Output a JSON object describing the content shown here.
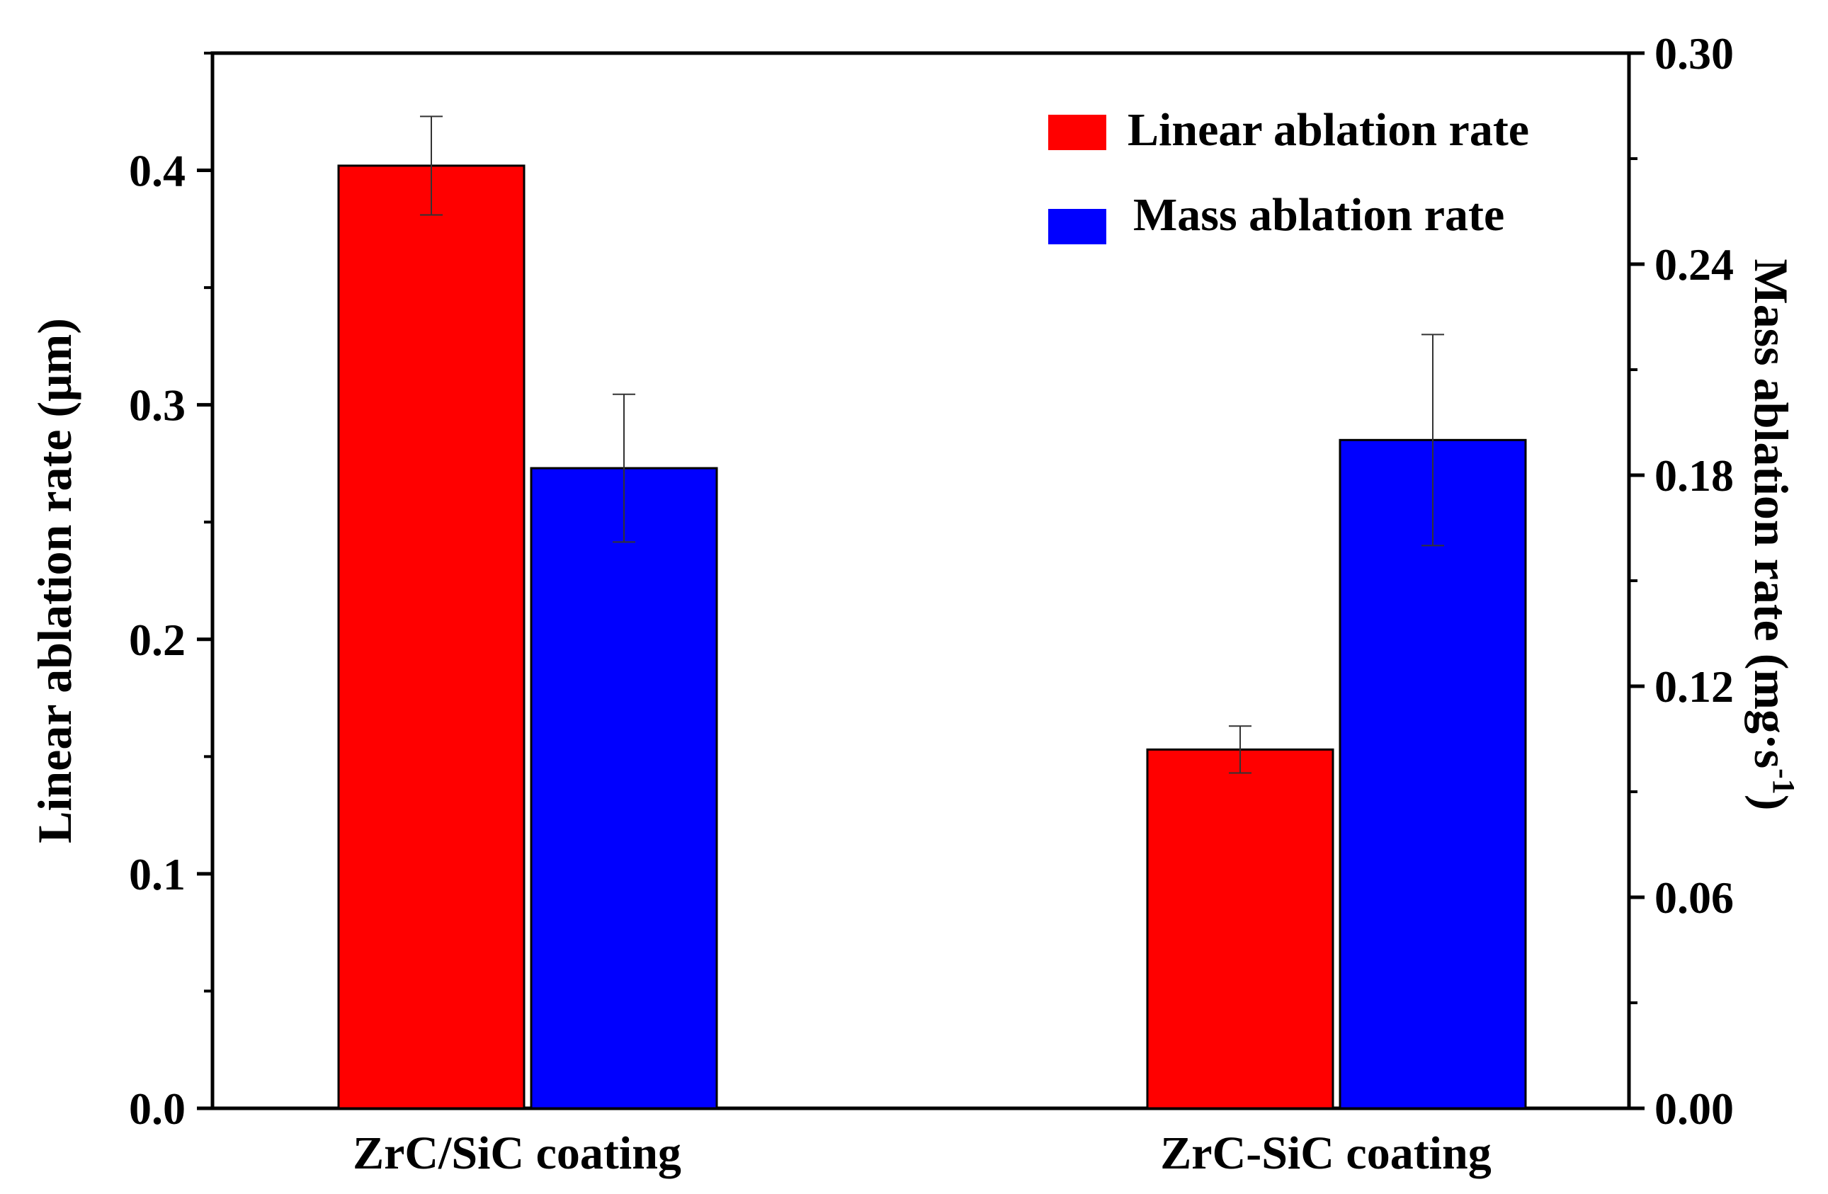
{
  "chart_data": {
    "type": "bar",
    "categories": [
      "ZrC/SiC coating",
      "ZrC-SiC coating"
    ],
    "series": [
      {
        "name": "Linear ablation rate",
        "axis": "left",
        "color": "#ff0000",
        "values": [
          0.402,
          0.153
        ],
        "errors": [
          0.021,
          0.01
        ]
      },
      {
        "name": "Mass ablation rate",
        "axis": "right",
        "color": "#0000ff",
        "values": [
          0.182,
          0.19
        ],
        "errors": [
          0.021,
          0.03
        ]
      }
    ],
    "y_left": {
      "label_main": "Linear ablation rate (",
      "label_unit": "μm",
      "label_close": ")",
      "ylim": [
        0,
        0.45
      ],
      "ticks": [
        "0.0",
        "0.1",
        "0.2",
        "0.3",
        "0.4"
      ],
      "tick_values": [
        0,
        0.1,
        0.2,
        0.3,
        0.4
      ]
    },
    "y_right": {
      "label_main": "Mass ablation rate (mg",
      "label_dot": "·",
      "label_s": "s",
      "label_exp": "-1",
      "label_close": ")",
      "ylim": [
        0,
        0.3
      ],
      "ticks": [
        "0.00",
        "0.06",
        "0.12",
        "0.18",
        "0.24",
        "0.30"
      ],
      "tick_values": [
        0,
        0.06,
        0.12,
        0.18,
        0.24,
        0.3
      ]
    },
    "legend": {
      "position": "top-right",
      "items": [
        "Linear ablation rate",
        "Mass ablation rate"
      ]
    }
  }
}
